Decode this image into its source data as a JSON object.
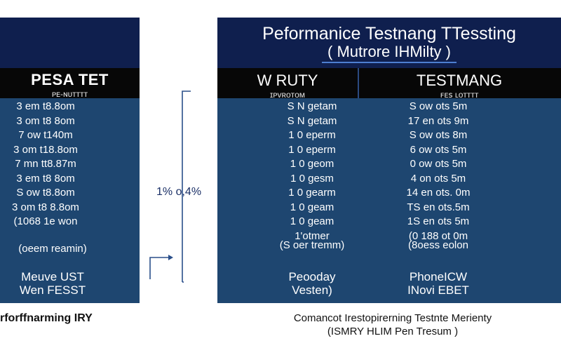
{
  "left_panel": {
    "header_title": "PESA TET",
    "header_subtitle": "ᴘᴇ-ɴᴜᴛᴛᴛᴛ",
    "rows": [
      "3 em t8.8om",
      "3 om t8 8om",
      "7 ow t140m",
      "3 om t18.8om",
      "7 mn tt8.87m",
      "3 em t8 8om",
      "S ow t8.8om",
      "3 om t8 8.8om",
      "(1068 1e won"
    ],
    "summary": "(oeem reamin)",
    "footer_line1": "Meuve UST",
    "footer_line2": "Wen FESST"
  },
  "middle": {
    "label": "1% o,4%"
  },
  "right_panel": {
    "title": "Peformanice  Testnang TTessting",
    "subtitle": "( Mutrore IHMilty )",
    "col_a": {
      "header_title": "W RUTY",
      "header_subtitle": "ɪᴘᴠʀᴏᴛᴏᴍ",
      "rows": [
        "S N getam",
        "S N getam",
        "1 0 eperm",
        "1 0 eperm",
        "1 0 geom",
        "1 0 gesm",
        "1 0 gearm",
        "1 0 geam",
        "1 0 geam",
        "1'otmer"
      ],
      "summary": "(S oer tremm)",
      "footer_line1": "Peooday",
      "footer_line2": "Vesten)"
    },
    "col_b": {
      "header_title": "TESTMANG",
      "header_subtitle": "ꜰᴇꜱ ʟᴏᴛᴛᴛᴛ",
      "rows": [
        "S ow ots 5m",
        "17 en ots 9m",
        "S ow ots 8m",
        "6 ow ots 5m",
        "0 ow ots 5m",
        "4 on ots 5m",
        "14 en ots. 0m",
        "TS en ots.5m",
        "1S en ots 5m",
        "(0 188 ot 0m"
      ],
      "summary": "(8oess eolon",
      "footer_line1": "PhoneICW",
      "footer_line2": "INovi EBET"
    }
  },
  "captions": {
    "left": "rforffnarming IRY",
    "right_line1": "Comancot Irestopirerning Testnte Merienty",
    "right_line2": "(ISMRY HLIM Pen Tresum )"
  },
  "colors": {
    "header_band": "#0f1f4e",
    "column_header": "#070707",
    "body": "#1e4670",
    "connector": "#2a4f8a"
  }
}
